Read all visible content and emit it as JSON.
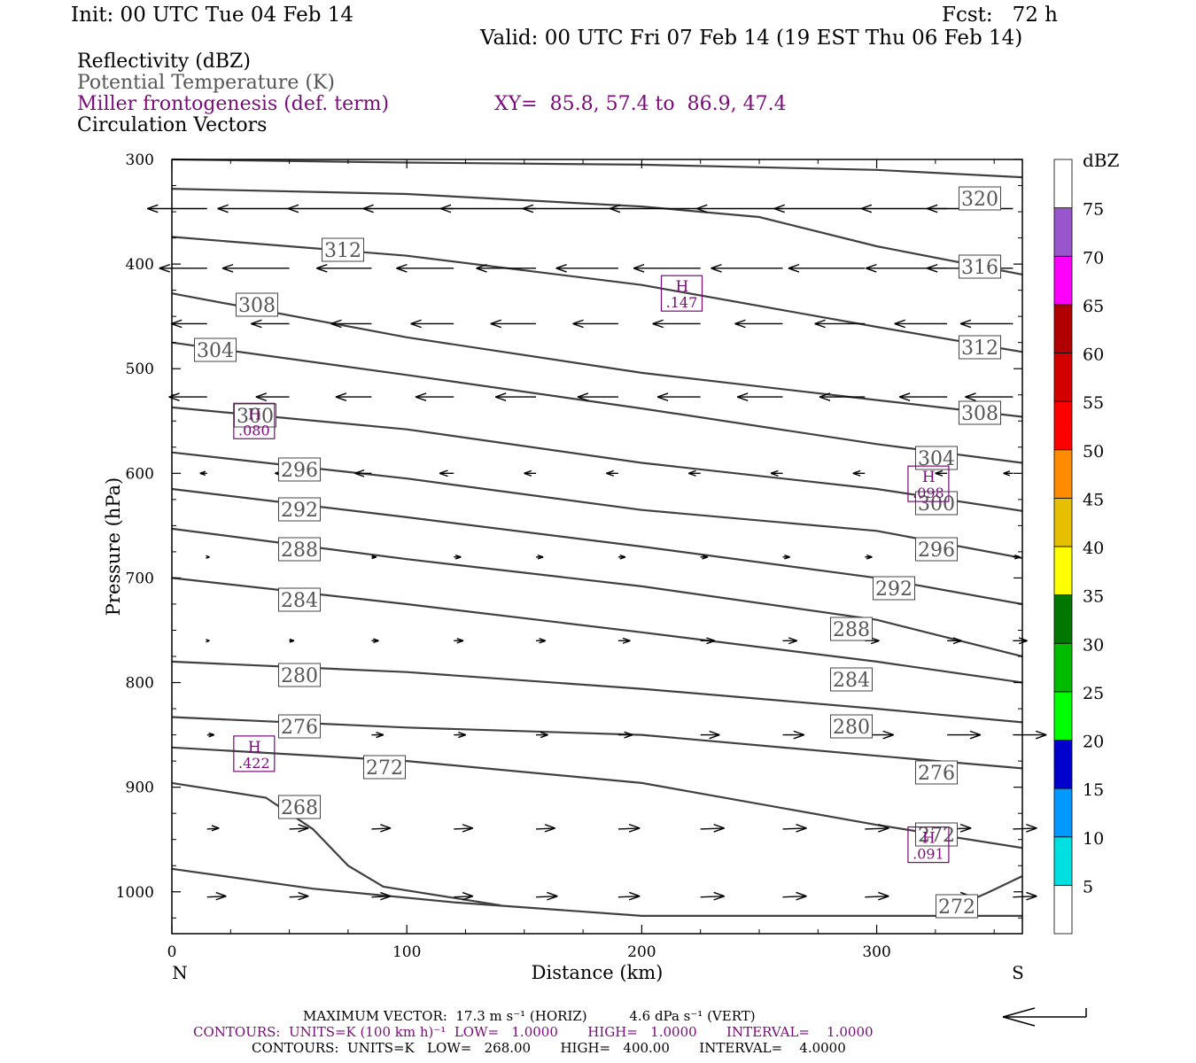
{
  "header": {
    "init": "Init: 00 UTC Tue 04 Feb 14",
    "fcst": "Fcst:   72 h",
    "valid": "Valid: 00 UTC Fri 07 Feb 14 (19 EST Thu 06 Feb 14)"
  },
  "fields": {
    "reflectivity": "Reflectivity (dBZ)",
    "theta": "Potential Temperature (K)",
    "frontogenesis": "Miller frontogenesis (def. term)",
    "xy": "XY=  85.8, 57.4 to  86.9, 47.4",
    "vectors": "Circulation Vectors"
  },
  "colors": {
    "contour": "#404040",
    "purple": "#7a0a7a",
    "theta_label": "#555555",
    "frame": "#000000"
  },
  "chart_data": {
    "type": "line",
    "xlabel": "Distance (km)",
    "ylabel": "Pressure (hPa)",
    "xlim": [
      0,
      362
    ],
    "ylim": [
      300,
      1040
    ],
    "xticks": [
      "0",
      "100",
      "200",
      "300"
    ],
    "yticks": [
      "300",
      "400",
      "500",
      "600",
      "700",
      "800",
      "900",
      "1000"
    ],
    "end_labels": {
      "left": "N",
      "right": "S"
    },
    "theta_contours": [
      {
        "value": 320,
        "points": [
          [
            0,
            300
          ],
          [
            100,
            303
          ],
          [
            200,
            305
          ],
          [
            300,
            310
          ],
          [
            362,
            317
          ]
        ]
      },
      {
        "value": 316,
        "points": [
          [
            0,
            328
          ],
          [
            100,
            333
          ],
          [
            200,
            345
          ],
          [
            250,
            355
          ],
          [
            300,
            383
          ],
          [
            362,
            410
          ]
        ]
      },
      {
        "value": 312,
        "points": [
          [
            0,
            374
          ],
          [
            100,
            392
          ],
          [
            200,
            420
          ],
          [
            300,
            460
          ],
          [
            362,
            484
          ]
        ]
      },
      {
        "value": 308,
        "points": [
          [
            0,
            428
          ],
          [
            100,
            470
          ],
          [
            200,
            504
          ],
          [
            300,
            530
          ],
          [
            362,
            546
          ]
        ]
      },
      {
        "value": 304,
        "points": [
          [
            0,
            475
          ],
          [
            100,
            506
          ],
          [
            200,
            538
          ],
          [
            300,
            572
          ],
          [
            362,
            590
          ]
        ]
      },
      {
        "value": 300,
        "points": [
          [
            0,
            537
          ],
          [
            100,
            558
          ],
          [
            200,
            590
          ],
          [
            300,
            615
          ],
          [
            362,
            636
          ]
        ]
      },
      {
        "value": 296,
        "points": [
          [
            0,
            580
          ],
          [
            100,
            605
          ],
          [
            200,
            635
          ],
          [
            300,
            655
          ],
          [
            362,
            681
          ]
        ]
      },
      {
        "value": 292,
        "points": [
          [
            0,
            615
          ],
          [
            100,
            642
          ],
          [
            200,
            670
          ],
          [
            300,
            700
          ],
          [
            362,
            725
          ]
        ]
      },
      {
        "value": 288,
        "points": [
          [
            0,
            653
          ],
          [
            100,
            682
          ],
          [
            200,
            708
          ],
          [
            300,
            740
          ],
          [
            362,
            775
          ]
        ]
      },
      {
        "value": 284,
        "points": [
          [
            0,
            700
          ],
          [
            100,
            725
          ],
          [
            200,
            752
          ],
          [
            300,
            780
          ],
          [
            362,
            800
          ]
        ]
      },
      {
        "value": 280,
        "points": [
          [
            0,
            780
          ],
          [
            100,
            790
          ],
          [
            200,
            806
          ],
          [
            300,
            825
          ],
          [
            362,
            838
          ]
        ]
      },
      {
        "value": 276,
        "points": [
          [
            0,
            833
          ],
          [
            100,
            843
          ],
          [
            200,
            850
          ],
          [
            300,
            870
          ],
          [
            362,
            882
          ]
        ]
      },
      {
        "value": 272,
        "points": [
          [
            0,
            862
          ],
          [
            100,
            875
          ],
          [
            200,
            896
          ],
          [
            300,
            936
          ],
          [
            362,
            958
          ]
        ]
      },
      {
        "value": 268,
        "points": [
          [
            0,
            896
          ],
          [
            40,
            910
          ],
          [
            60,
            940
          ],
          [
            75,
            975
          ],
          [
            90,
            995
          ],
          [
            140,
            1013
          ]
        ]
      },
      {
        "value": 272,
        "points": [
          [
            0,
            978
          ],
          [
            60,
            997
          ],
          [
            120,
            1010
          ],
          [
            200,
            1023
          ],
          [
            362,
            1023
          ]
        ]
      },
      {
        "value": 272,
        "points": [
          [
            330,
            1018
          ],
          [
            348,
            1000
          ],
          [
            362,
            985
          ]
        ]
      }
    ],
    "theta_labels": [
      "320",
      "316",
      "312",
      "312",
      "308",
      "308",
      "304",
      "304",
      "300",
      "300",
      "296",
      "296",
      "292",
      "292",
      "288",
      "288",
      "284",
      "284",
      "280",
      "280",
      "276",
      "276",
      "272",
      "272",
      "268",
      "272"
    ],
    "frontogenesis_maxima": [
      {
        "label": "H",
        "value": ".147",
        "x": 217,
        "p": 428
      },
      {
        "label": "H",
        "value": ".080",
        "x": 35,
        "p": 550
      },
      {
        "label": "H",
        "value": ".098",
        "x": 322,
        "p": 610
      },
      {
        "label": "H",
        "value": ".422",
        "x": 35,
        "p": 868
      },
      {
        "label": "H",
        "value": ".091",
        "x": 322,
        "p": 955
      }
    ],
    "vector_rows": [
      {
        "p": 347,
        "u": [
          -25,
          -30,
          -35,
          -38,
          -40,
          -40,
          -38,
          -36,
          -38,
          -36,
          -36
        ]
      },
      {
        "p": 404,
        "u": [
          -20,
          -28,
          -23,
          -24,
          -25,
          -26,
          -28,
          -30,
          -32,
          -34,
          -36
        ]
      },
      {
        "p": 457,
        "u": [
          -15,
          -16,
          -17,
          -18,
          -19,
          -19,
          -20,
          -20,
          -21,
          -22,
          -22
        ]
      },
      {
        "p": 527,
        "u": [
          -16,
          -14,
          -15,
          -16,
          -17,
          -17,
          -18,
          -19,
          -19,
          -20,
          -20
        ]
      },
      {
        "p": 600,
        "u": [
          -3,
          -6,
          -7,
          -6,
          -5,
          -5,
          -5,
          -5,
          -5,
          -5,
          -4
        ]
      },
      {
        "p": 680,
        "u": [
          1,
          1,
          2,
          3,
          3,
          3,
          3,
          3,
          3,
          3,
          3
        ]
      },
      {
        "p": 760,
        "u": [
          1,
          2,
          3,
          4,
          4,
          5,
          6,
          6,
          6,
          6,
          6
        ]
      },
      {
        "p": 850,
        "u": [
          3,
          4,
          5,
          5,
          5,
          6,
          8,
          9,
          12,
          14,
          14
        ]
      },
      {
        "p": 940,
        "u": [
          5,
          8,
          8,
          8,
          8,
          9,
          10,
          10,
          10,
          10,
          10
        ]
      },
      {
        "p": 1005,
        "u": [
          8,
          8,
          8,
          8,
          9,
          9,
          10,
          10,
          10,
          10,
          10
        ]
      }
    ],
    "colorbar": {
      "unit": "dBZ",
      "levels": [
        "5",
        "10",
        "15",
        "20",
        "25",
        "30",
        "35",
        "40",
        "45",
        "50",
        "55",
        "60",
        "65",
        "70",
        "75"
      ],
      "colors": [
        "#ffffff",
        "#00e0e0",
        "#0099ff",
        "#0000cc",
        "#00ff00",
        "#00bb00",
        "#007700",
        "#ffff00",
        "#e6c000",
        "#ff8c00",
        "#ff0000",
        "#d40000",
        "#b00000",
        "#ff00ff",
        "#9955cc",
        "#ffffff"
      ]
    }
  },
  "footer": {
    "max_vector": "MAXIMUM VECTOR:  17.3 m s⁻¹ (HORIZ)          4.6 dPa s⁻¹ (VERT)",
    "contours_front": "CONTOURS:  UNITS=K (100 km h)⁻¹  LOW=   1.0000       HIGH=   1.0000       INTERVAL=    1.0000",
    "contours_theta": "CONTOURS:  UNITS=K   LOW=   268.00       HIGH=   400.00       INTERVAL=    4.0000"
  }
}
